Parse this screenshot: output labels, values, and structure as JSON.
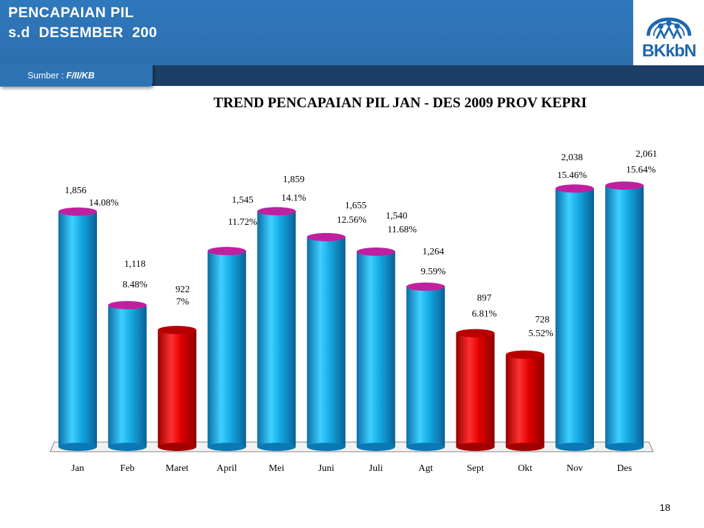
{
  "header": {
    "title_line1": "PENCAPAIAN PIL",
    "title_line2": "s.d  DESEMBER  200",
    "logo_text": "BKkbN",
    "source_label": "Sumber : ",
    "source_value": "F/II/KB"
  },
  "page_number": "18",
  "colors": {
    "header_blue": "#2f78bd",
    "strip_navy": "#1b3f66",
    "bar_blue": "#12a6e0",
    "bar_red": "#e00000",
    "bar_cap": "#c020a0"
  },
  "chart_data": {
    "type": "bar",
    "title": "TREND PENCAPAIAN PIL JAN - DES 2009 PROV KEPRI",
    "categories": [
      "Jan",
      "Feb",
      "Maret",
      "April",
      "Mei",
      "Juni",
      "Juli",
      "Agt",
      "Sept",
      "Okt",
      "Nov",
      "Des"
    ],
    "series": [
      {
        "values": [
          1856,
          1118,
          922,
          1545,
          1859,
          1655,
          1540,
          1264,
          897,
          728,
          2038,
          2061
        ]
      }
    ],
    "value_labels": [
      "1,856",
      "1,118",
      "922",
      "1,545",
      "1,859",
      "1,655",
      "1,540",
      "1,264",
      "897",
      "728",
      "2,038",
      "2,061"
    ],
    "percent_labels": [
      "14.08%",
      "8.48%",
      "7%",
      "11.72%",
      "14.1%",
      "12.56%",
      "11.68%",
      "9.59%",
      "6.81%",
      "5.52%",
      "15.46%",
      "15.64%"
    ],
    "bar_colors": [
      "blue",
      "blue",
      "red",
      "blue",
      "blue",
      "blue",
      "blue",
      "blue",
      "red",
      "red",
      "blue",
      "blue"
    ],
    "ylim": [
      0,
      2061
    ],
    "grid": false,
    "legend": "none"
  }
}
